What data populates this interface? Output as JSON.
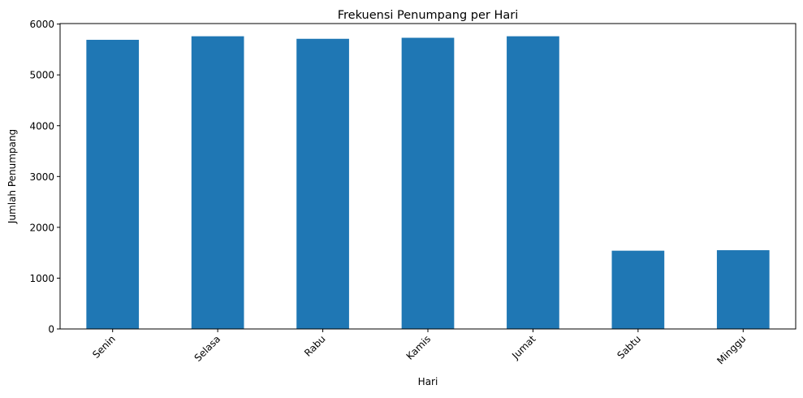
{
  "chart_data": {
    "type": "bar",
    "title": "Frekuensi Penumpang per Hari",
    "xlabel": "Hari",
    "ylabel": "Jumlah Penumpang",
    "categories": [
      "Senin",
      "Selasa",
      "Rabu",
      "Kamis",
      "Jumat",
      "Sabtu",
      "Minggu"
    ],
    "values": [
      5690,
      5760,
      5710,
      5730,
      5760,
      1540,
      1550
    ],
    "ylim": [
      0,
      6010
    ],
    "yticks": [
      0,
      1000,
      2000,
      3000,
      4000,
      5000,
      6000
    ],
    "ytick_labels": [
      "0",
      "1000",
      "2000",
      "3000",
      "4000",
      "5000",
      "6000"
    ],
    "grid": false,
    "legend": "none",
    "bar_color": "#1f77b4"
  }
}
